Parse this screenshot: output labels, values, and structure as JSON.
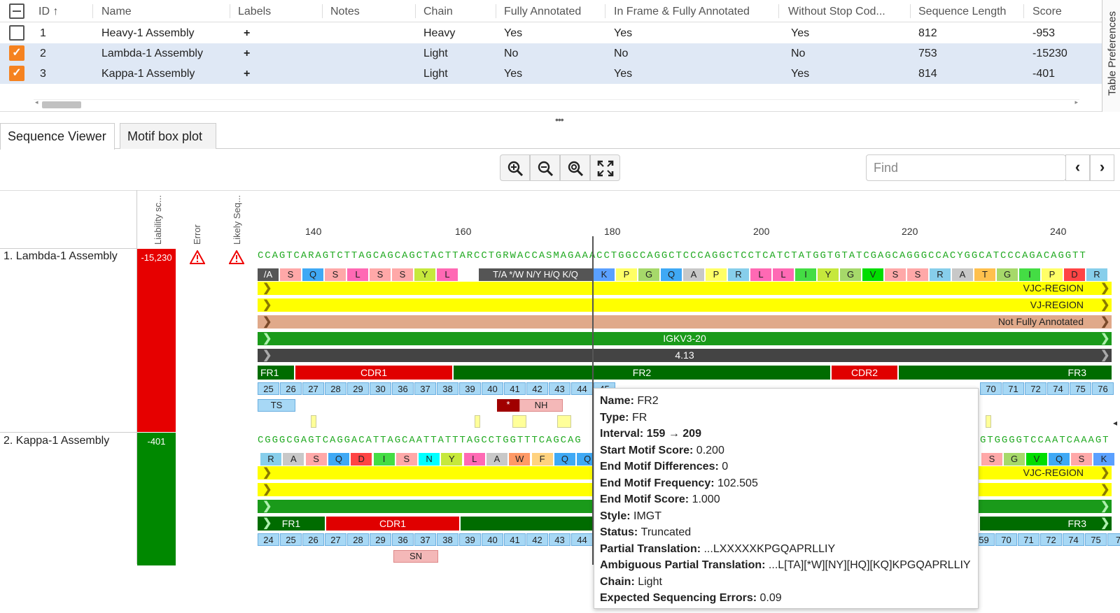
{
  "table": {
    "columns": [
      "ID",
      "Name",
      "Labels",
      "Notes",
      "Chain",
      "Fully Annotated",
      "In Frame & Fully Annotated",
      "Without Stop Cod...",
      "Sequence Length",
      "Score"
    ],
    "rows": [
      {
        "id": "1",
        "name": "Heavy-1 Assembly",
        "labels": "+",
        "notes": "",
        "chain": "Heavy",
        "fully": "Yes",
        "inframe": "Yes",
        "nostop": "Yes",
        "length": "812",
        "score": "-953",
        "selected": false
      },
      {
        "id": "2",
        "name": "Lambda-1 Assembly",
        "labels": "+",
        "notes": "",
        "chain": "Light",
        "fully": "No",
        "inframe": "No",
        "nostop": "No",
        "length": "753",
        "score": "-15230",
        "selected": true
      },
      {
        "id": "3",
        "name": "Kappa-1 Assembly",
        "labels": "+",
        "notes": "",
        "chain": "Light",
        "fully": "Yes",
        "inframe": "Yes",
        "nostop": "Yes",
        "length": "814",
        "score": "-401",
        "selected": true
      }
    ],
    "side_tab": "Table Preferences"
  },
  "tabs": [
    "Sequence Viewer",
    "Motif box plot"
  ],
  "toolbar": {
    "icons": [
      "zoom-in-icon",
      "zoom-out-icon",
      "zoom-fit-icon",
      "fullscreen-icon"
    ],
    "find_placeholder": "Find",
    "prev": "‹",
    "next": "›"
  },
  "viewer": {
    "column_headers": [
      "Liability sc...",
      "Error",
      "Likely Seq..."
    ],
    "ruler": [
      "140",
      "160",
      "180",
      "200",
      "220",
      "240"
    ],
    "seq1": {
      "label": "1. Lambda-1 Assembly",
      "score": "-15,230",
      "nucleotides": "CCAGTCARAGTCTTAGCAGCAGCTACTTARCCTGRWACCASMAGAAACCTGGCCAGGCTCCCAGGCTCCTCATCTATGGTGTATCGAGCAGGGCCACYGGCATCCCAGACAGGTT",
      "aa_left": [
        "/A",
        "S",
        "Q",
        "S",
        "L",
        "S",
        "S",
        "Y",
        "L"
      ],
      "ambig": "T/A */W N/Y H/Q K/Q",
      "aa_right": [
        "K",
        "P",
        "G",
        "Q",
        "A",
        "P",
        "R",
        "L",
        "L",
        "I",
        "Y",
        "G",
        "V",
        "S",
        "S",
        "R",
        "A",
        "T",
        "G",
        "I",
        "P",
        "D",
        "R"
      ],
      "bars": [
        "VJC-REGION",
        "VJ-REGION",
        "Not Fully Annotated",
        "IGKV3-20",
        "4.13"
      ],
      "regions": [
        "FR1",
        "CDR1",
        "FR2",
        "CDR2",
        "FR3"
      ],
      "nums_left": [
        "25",
        "26",
        "27",
        "28",
        "29",
        "30",
        "36",
        "37",
        "38",
        "39",
        "40",
        "41",
        "42",
        "43",
        "44",
        "45"
      ],
      "nums_right": [
        "70",
        "71",
        "72",
        "74",
        "75",
        "76"
      ],
      "motifs": [
        "TS",
        "*",
        "NH"
      ]
    },
    "seq2": {
      "label": "2. Kappa-1 Assembly",
      "score": "-401",
      "nucleotides": "CGGGCGAGTCAGGACATTAGCAATTATTTAGCCTGGTTTCAGCAG",
      "nucleotides_right": "GTGGGGTCCAATCAAAGT",
      "aa_left": [
        "R",
        "A",
        "S",
        "Q",
        "D",
        "I",
        "S",
        "N",
        "Y",
        "L",
        "A",
        "W",
        "F",
        "Q",
        "Q"
      ],
      "aa_right": [
        "S",
        "G",
        "V",
        "Q",
        "S",
        "K"
      ],
      "bars": [
        "VJC-REGION"
      ],
      "regions": [
        "FR1",
        "CDR1",
        "FR3"
      ],
      "nums_left": [
        "24",
        "25",
        "26",
        "27",
        "28",
        "29",
        "36",
        "37",
        "38",
        "39",
        "40",
        "41",
        "42",
        "43",
        "44"
      ],
      "nums_right": [
        "59",
        "70",
        "71",
        "72",
        "74",
        "75",
        "7"
      ],
      "motifs": [
        "SN"
      ]
    }
  },
  "tooltip": [
    {
      "k": "Name:",
      "v": "FR2"
    },
    {
      "k": "Type:",
      "v": "FR"
    },
    {
      "k": "Interval:",
      "v": "159 → 209",
      "bold": true
    },
    {
      "k": "Start Motif Score:",
      "v": "0.200"
    },
    {
      "k": "End Motif Differences:",
      "v": "0"
    },
    {
      "k": "End Motif Frequency:",
      "v": "102.505"
    },
    {
      "k": "End Motif Score:",
      "v": "1.000"
    },
    {
      "k": "Style:",
      "v": "IMGT"
    },
    {
      "k": "Status:",
      "v": "Truncated"
    },
    {
      "k": "Partial Translation:",
      "v": "...LXXXXXKPGQAPRLLIY"
    },
    {
      "k": "Ambiguous Partial Translation:",
      "v": "...L[TA][*W][NY][HQ][KQ]KPGQAPRLLIY"
    },
    {
      "k": "Chain:",
      "v": "Light"
    },
    {
      "k": "Expected Sequencing Errors:",
      "v": "0.09"
    }
  ]
}
